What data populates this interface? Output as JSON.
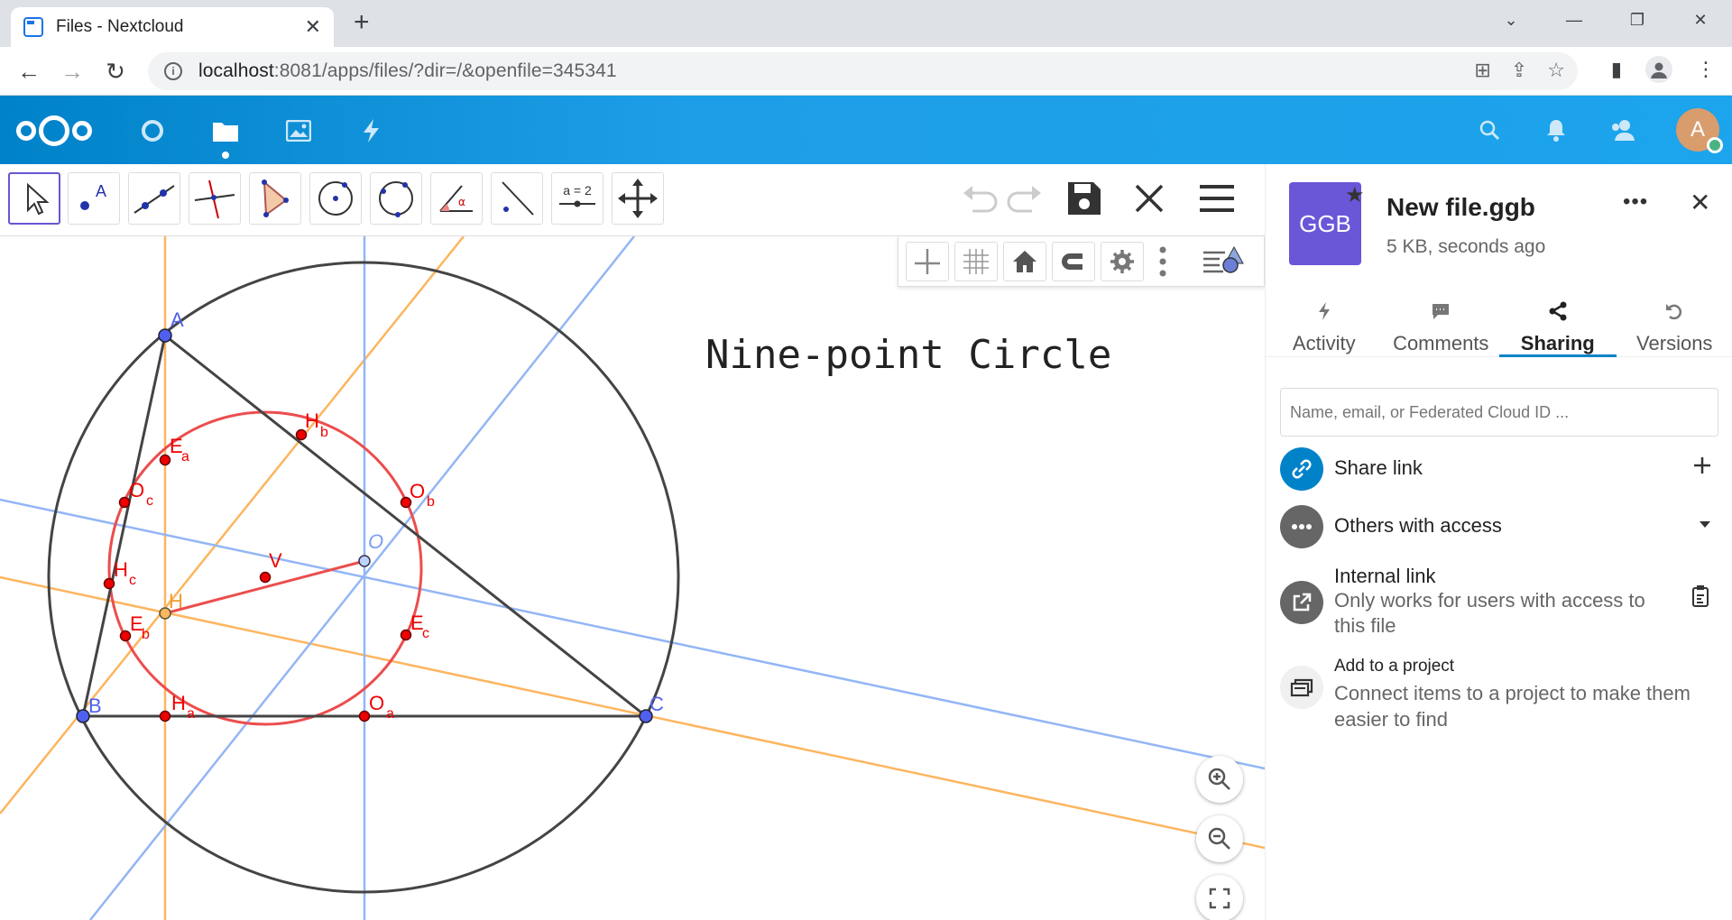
{
  "browser": {
    "tab_title": "Files - Nextcloud",
    "tab_close": "✕",
    "new_tab": "+",
    "url_host": "localhost",
    "url_rest": ":8081/apps/files/?dir=/&openfile=345341"
  },
  "header": {
    "avatar_letter": "A",
    "brand_color": "#0082c9"
  },
  "geogebra": {
    "title": "Nine-point Circle",
    "equal_tool_label": "a = 2",
    "points": {
      "A": "A",
      "B": "B",
      "C": "C",
      "H": "H",
      "V": "V",
      "O": "O",
      "Ea": "E",
      "Eb": "E",
      "Ec": "E",
      "Ha": "H",
      "Hb": "H",
      "Hc": "H",
      "Oa": "O",
      "Ob": "O",
      "Oc": "O",
      "sub_a": "a",
      "sub_b": "b",
      "sub_c": "c"
    }
  },
  "sidebar": {
    "file_icon_label": "GGB",
    "file_name": "New file.ggb",
    "file_meta": "5 KB, seconds ago",
    "tabs": [
      {
        "label": "Activity"
      },
      {
        "label": "Comments"
      },
      {
        "label": "Sharing"
      },
      {
        "label": "Versions"
      }
    ],
    "share_placeholder": "Name, email, or Federated Cloud ID ...",
    "share_link": "Share link",
    "others_access": "Others with access",
    "internal_link": "Internal link",
    "internal_link_sub": "Only works for users with access to this file",
    "add_project": "Add to a project",
    "add_project_sub": "Connect items to a project to make them easier to find"
  }
}
